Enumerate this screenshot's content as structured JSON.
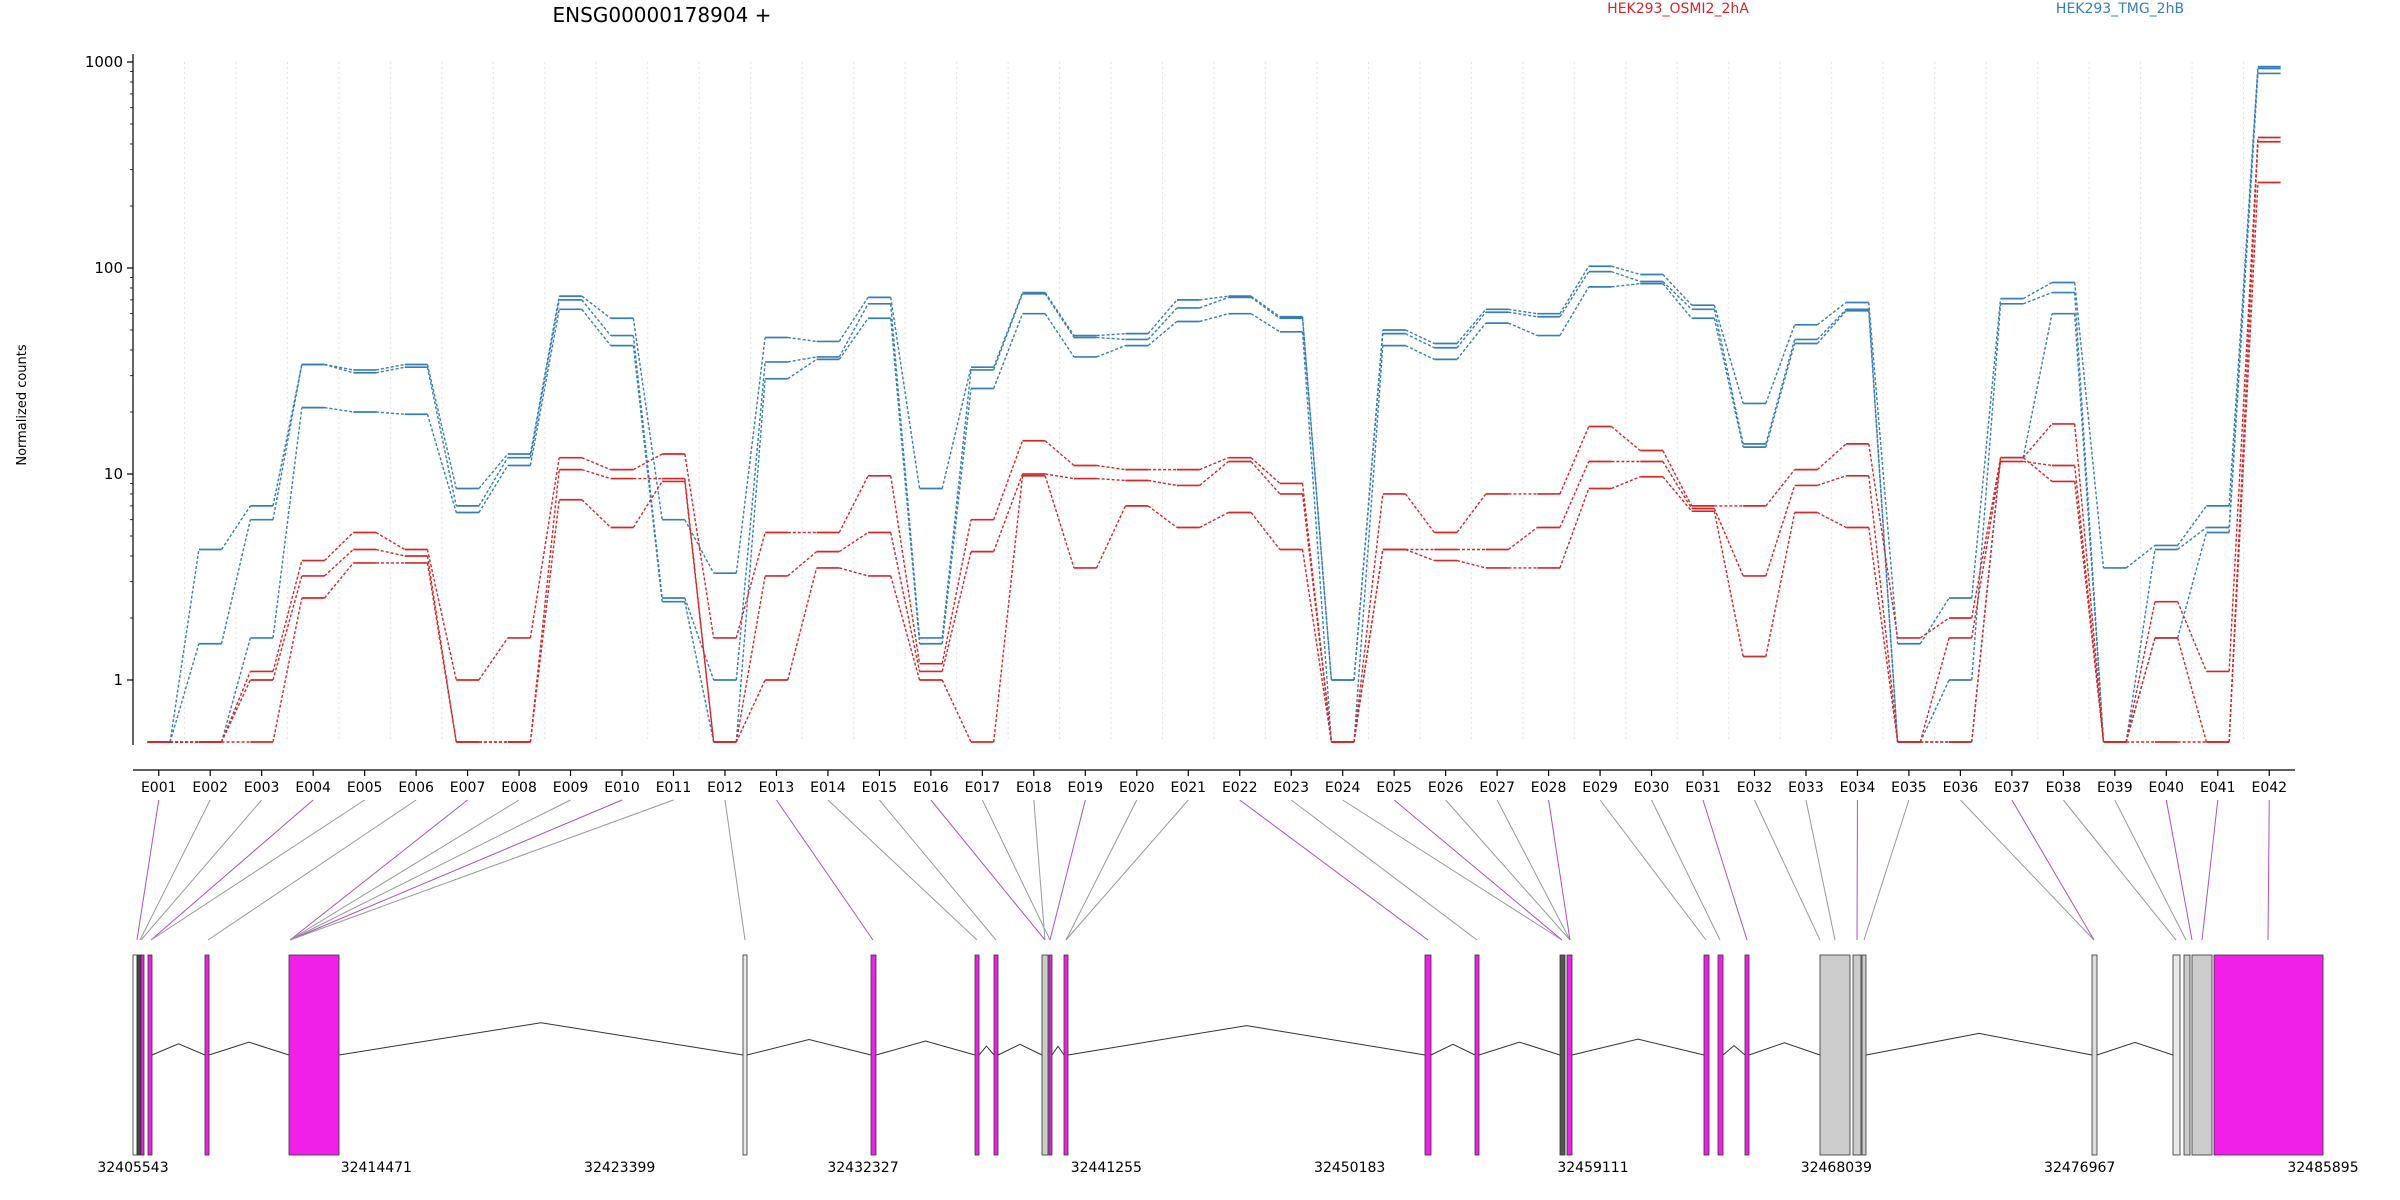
{
  "chart_data": {
    "type": "line",
    "title": "ENSG00000178904 +",
    "ylabel": "Normalized counts",
    "yscale": "log",
    "ylim": [
      0.5,
      1000
    ],
    "yticks": [
      "1",
      "10",
      "100",
      "1000"
    ],
    "legend": [
      {
        "name": "HEK293_OSMI2_2hA",
        "color": "#d62728"
      },
      {
        "name": "HEK293_TMG_2hB",
        "color": "#377eb8"
      }
    ],
    "categories": [
      "E001",
      "E002",
      "E003",
      "E004",
      "E005",
      "E006",
      "E007",
      "E008",
      "E009",
      "E010",
      "E011",
      "E012",
      "E013",
      "E014",
      "E015",
      "E016",
      "E017",
      "E018",
      "E019",
      "E020",
      "E021",
      "E022",
      "E023",
      "E024",
      "E025",
      "E026",
      "E027",
      "E028",
      "E029",
      "E030",
      "E031",
      "E032",
      "E033",
      "E034",
      "E035",
      "E036",
      "E037",
      "E038",
      "E039",
      "E040",
      "E041",
      "E042"
    ],
    "series": [
      {
        "group": "HEK293_TMG_2hB",
        "color": "#377eb8",
        "values": [
          0.5,
          4.3,
          7,
          34,
          32,
          34,
          8.5,
          12.5,
          73,
          57,
          6,
          3.3,
          46,
          44,
          72,
          8.5,
          33,
          76,
          47,
          48,
          70,
          73,
          58,
          1,
          50,
          43,
          63,
          60,
          102,
          93,
          66,
          22,
          53,
          68,
          1.5,
          2.5,
          71,
          85,
          3.5,
          4.5,
          7,
          950
        ]
      },
      {
        "group": "HEK293_TMG_2hB",
        "color": "#377eb8",
        "values": [
          0.5,
          1.5,
          6,
          34,
          31,
          33,
          7,
          12,
          70,
          47,
          2.5,
          1,
          35,
          37,
          67,
          1.6,
          32,
          75,
          46,
          45,
          64,
          72,
          57,
          1,
          48,
          41,
          61,
          58,
          96,
          86,
          63,
          14,
          45,
          63,
          0.5,
          1,
          67,
          76,
          0.5,
          4.3,
          5.5,
          930
        ]
      },
      {
        "group": "HEK293_TMG_2hB",
        "color": "#377eb8",
        "values": [
          0.5,
          0.5,
          1.6,
          21,
          20,
          19.5,
          6.5,
          11,
          63,
          42,
          2.4,
          0.5,
          29,
          36,
          57,
          1.5,
          26,
          60,
          37,
          42,
          55,
          60,
          49,
          0.5,
          42,
          36,
          54,
          47,
          81,
          84,
          57,
          13.5,
          43,
          62,
          0.5,
          0.5,
          12,
          60,
          0.5,
          1.6,
          5.2,
          880
        ]
      },
      {
        "group": "HEK293_OSMI2_2hA",
        "color": "#d62728",
        "values": [
          0.5,
          0.5,
          1.1,
          3.8,
          5.2,
          4.3,
          1,
          1.6,
          12,
          10.5,
          12.5,
          1.6,
          5.2,
          5.2,
          9.8,
          1.2,
          6,
          14.5,
          11,
          10.5,
          10.5,
          12,
          9,
          0.5,
          8,
          5.2,
          8,
          8,
          17,
          13,
          7,
          7,
          10.5,
          14,
          1.6,
          2,
          12,
          17.5,
          0.5,
          2.4,
          1.1,
          430
        ]
      },
      {
        "group": "HEK293_OSMI2_2hA",
        "color": "#d62728",
        "values": [
          0.5,
          0.5,
          1,
          3.2,
          4.3,
          4,
          0.5,
          0.5,
          10.5,
          9.5,
          9.5,
          0.5,
          3.2,
          4.2,
          5.2,
          1.1,
          4.2,
          10,
          9.5,
          9.3,
          8.8,
          11.5,
          8,
          0.5,
          4.3,
          4.3,
          4.3,
          5.5,
          11.5,
          11.5,
          6.8,
          3.2,
          8.8,
          9.8,
          0.5,
          1.6,
          11.5,
          11,
          0.5,
          1.6,
          0.5,
          410
        ]
      },
      {
        "group": "HEK293_OSMI2_2hA",
        "color": "#d62728",
        "values": [
          0.5,
          0.5,
          0.5,
          2.5,
          3.7,
          3.7,
          0.5,
          0.5,
          7.5,
          5.5,
          9.2,
          0.5,
          1,
          3.5,
          3.2,
          1,
          0.5,
          9.8,
          3.5,
          7,
          5.5,
          6.5,
          4.3,
          0.5,
          4.3,
          3.8,
          3.5,
          3.5,
          8.5,
          9.7,
          6.6,
          1.3,
          6.5,
          5.5,
          0.5,
          0.5,
          12,
          9.2,
          0.5,
          0.5,
          0.5,
          260
        ]
      }
    ],
    "genomic_ticks": [
      "32405543",
      "32414471",
      "32423399",
      "32432327",
      "32441255",
      "32450183",
      "32459111",
      "32468039",
      "32476967",
      "32485895"
    ],
    "gene_model": {
      "intron_color": "#333333",
      "highlight_color": "#f020e8",
      "neutral_color": "#cccccc"
    }
  }
}
